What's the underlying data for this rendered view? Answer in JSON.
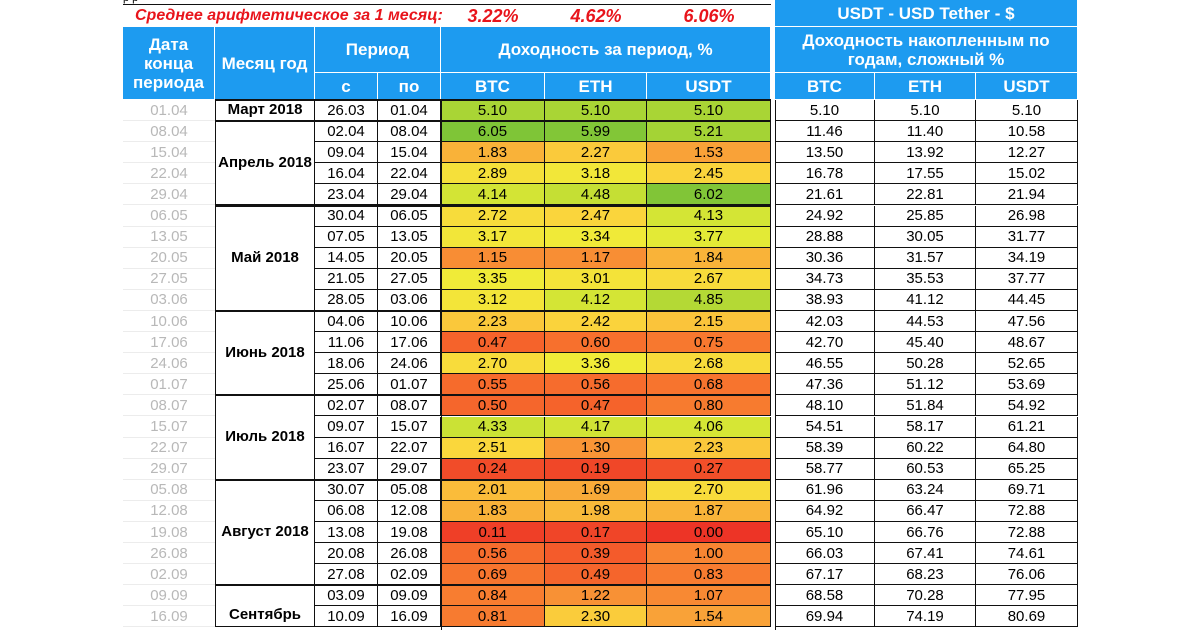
{
  "header": {
    "top_left_fragment": "р    р",
    "avg_label": "Среднее арифметическое за 1 месяц:",
    "avg": {
      "btc": "3.22%",
      "eth": "4.62%",
      "usdt": "6.06%"
    },
    "usdt_banner": "USDT - USD Tether - $",
    "col_end_date": "Дата конца периода",
    "col_month": "Месяц год",
    "col_period": "Период",
    "col_from": "с",
    "col_to": "по",
    "col_yield": "Доходность за период, %",
    "col_cum": "Доходность накопленным по годам, сложный %",
    "btc": "BTC",
    "eth": "ETH",
    "usdt": "USDT"
  },
  "months": [
    {
      "label": "Март 2018",
      "start": 0,
      "count": 1
    },
    {
      "label": "Апрель 2018",
      "start": 1,
      "count": 4
    },
    {
      "label": "Май 2018",
      "start": 5,
      "count": 5
    },
    {
      "label": "Июнь 2018",
      "start": 10,
      "count": 4
    },
    {
      "label": "Июль 2018",
      "start": 14,
      "count": 4
    },
    {
      "label": "Август 2018",
      "start": 18,
      "count": 5
    },
    {
      "label": "Сентябрь",
      "start": 23,
      "count": 2
    }
  ],
  "rows": [
    {
      "end": "01.04",
      "from": "26.03",
      "to": "01.04",
      "btc": "5.10",
      "eth": "5.10",
      "usdt": "5.10",
      "cbtc": "5.10",
      "ceth": "5.10",
      "cusdt": "5.10"
    },
    {
      "end": "08.04",
      "from": "02.04",
      "to": "08.04",
      "btc": "6.05",
      "eth": "5.99",
      "usdt": "5.21",
      "cbtc": "11.46",
      "ceth": "11.40",
      "cusdt": "10.58"
    },
    {
      "end": "15.04",
      "from": "09.04",
      "to": "15.04",
      "btc": "1.83",
      "eth": "2.27",
      "usdt": "1.53",
      "cbtc": "13.50",
      "ceth": "13.92",
      "cusdt": "12.27"
    },
    {
      "end": "22.04",
      "from": "16.04",
      "to": "22.04",
      "btc": "2.89",
      "eth": "3.18",
      "usdt": "2.45",
      "cbtc": "16.78",
      "ceth": "17.55",
      "cusdt": "15.02"
    },
    {
      "end": "29.04",
      "from": "23.04",
      "to": "29.04",
      "btc": "4.14",
      "eth": "4.48",
      "usdt": "6.02",
      "cbtc": "21.61",
      "ceth": "22.81",
      "cusdt": "21.94"
    },
    {
      "end": "06.05",
      "from": "30.04",
      "to": "06.05",
      "btc": "2.72",
      "eth": "2.47",
      "usdt": "4.13",
      "cbtc": "24.92",
      "ceth": "25.85",
      "cusdt": "26.98"
    },
    {
      "end": "13.05",
      "from": "07.05",
      "to": "13.05",
      "btc": "3.17",
      "eth": "3.34",
      "usdt": "3.77",
      "cbtc": "28.88",
      "ceth": "30.05",
      "cusdt": "31.77"
    },
    {
      "end": "20.05",
      "from": "14.05",
      "to": "20.05",
      "btc": "1.15",
      "eth": "1.17",
      "usdt": "1.84",
      "cbtc": "30.36",
      "ceth": "31.57",
      "cusdt": "34.19"
    },
    {
      "end": "27.05",
      "from": "21.05",
      "to": "27.05",
      "btc": "3.35",
      "eth": "3.01",
      "usdt": "2.67",
      "cbtc": "34.73",
      "ceth": "35.53",
      "cusdt": "37.77"
    },
    {
      "end": "03.06",
      "from": "28.05",
      "to": "03.06",
      "btc": "3.12",
      "eth": "4.12",
      "usdt": "4.85",
      "cbtc": "38.93",
      "ceth": "41.12",
      "cusdt": "44.45"
    },
    {
      "end": "10.06",
      "from": "04.06",
      "to": "10.06",
      "btc": "2.23",
      "eth": "2.42",
      "usdt": "2.15",
      "cbtc": "42.03",
      "ceth": "44.53",
      "cusdt": "47.56"
    },
    {
      "end": "17.06",
      "from": "11.06",
      "to": "17.06",
      "btc": "0.47",
      "eth": "0.60",
      "usdt": "0.75",
      "cbtc": "42.70",
      "ceth": "45.40",
      "cusdt": "48.67"
    },
    {
      "end": "24.06",
      "from": "18.06",
      "to": "24.06",
      "btc": "2.70",
      "eth": "3.36",
      "usdt": "2.68",
      "cbtc": "46.55",
      "ceth": "50.28",
      "cusdt": "52.65"
    },
    {
      "end": "01.07",
      "from": "25.06",
      "to": "01.07",
      "btc": "0.55",
      "eth": "0.56",
      "usdt": "0.68",
      "cbtc": "47.36",
      "ceth": "51.12",
      "cusdt": "53.69"
    },
    {
      "end": "08.07",
      "from": "02.07",
      "to": "08.07",
      "btc": "0.50",
      "eth": "0.47",
      "usdt": "0.80",
      "cbtc": "48.10",
      "ceth": "51.84",
      "cusdt": "54.92"
    },
    {
      "end": "15.07",
      "from": "09.07",
      "to": "15.07",
      "btc": "4.33",
      "eth": "4.17",
      "usdt": "4.06",
      "cbtc": "54.51",
      "ceth": "58.17",
      "cusdt": "61.21"
    },
    {
      "end": "22.07",
      "from": "16.07",
      "to": "22.07",
      "btc": "2.51",
      "eth": "1.30",
      "usdt": "2.23",
      "cbtc": "58.39",
      "ceth": "60.22",
      "cusdt": "64.80"
    },
    {
      "end": "29.07",
      "from": "23.07",
      "to": "29.07",
      "btc": "0.24",
      "eth": "0.19",
      "usdt": "0.27",
      "cbtc": "58.77",
      "ceth": "60.53",
      "cusdt": "65.25"
    },
    {
      "end": "05.08",
      "from": "30.07",
      "to": "05.08",
      "btc": "2.01",
      "eth": "1.69",
      "usdt": "2.70",
      "cbtc": "61.96",
      "ceth": "63.24",
      "cusdt": "69.71"
    },
    {
      "end": "12.08",
      "from": "06.08",
      "to": "12.08",
      "btc": "1.83",
      "eth": "1.98",
      "usdt": "1.87",
      "cbtc": "64.92",
      "ceth": "66.47",
      "cusdt": "72.88"
    },
    {
      "end": "19.08",
      "from": "13.08",
      "to": "19.08",
      "btc": "0.11",
      "eth": "0.17",
      "usdt": "0.00",
      "cbtc": "65.10",
      "ceth": "66.76",
      "cusdt": "72.88"
    },
    {
      "end": "26.08",
      "from": "20.08",
      "to": "26.08",
      "btc": "0.56",
      "eth": "0.39",
      "usdt": "1.00",
      "cbtc": "66.03",
      "ceth": "67.41",
      "cusdt": "74.61"
    },
    {
      "end": "02.09",
      "from": "27.08",
      "to": "02.09",
      "btc": "0.69",
      "eth": "0.49",
      "usdt": "0.83",
      "cbtc": "67.17",
      "ceth": "68.23",
      "cusdt": "76.06"
    },
    {
      "end": "09.09",
      "from": "03.09",
      "to": "09.09",
      "btc": "0.84",
      "eth": "1.22",
      "usdt": "1.07",
      "cbtc": "68.58",
      "ceth": "70.28",
      "cusdt": "77.95"
    },
    {
      "end": "16.09",
      "from": "10.09",
      "to": "16.09",
      "btc": "0.81",
      "eth": "2.30",
      "usdt": "1.54",
      "cbtc": "69.94",
      "ceth": "74.19",
      "cusdt": "80.69"
    }
  ],
  "colors": {
    "header_blue": "#1d9bf0",
    "avg_red": "#e8141b"
  }
}
